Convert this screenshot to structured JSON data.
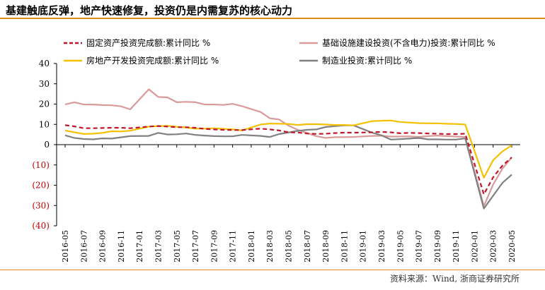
{
  "title": "基建触底反弹，地产快速修复，投资仍是内需复苏的核心动力",
  "source": "资料来源：Wind, 浙商证券研究所",
  "colors": {
    "fixed": "#c0152a",
    "infra": "#d99a9a",
    "realestate": "#f5c000",
    "manufacturing": "#808080",
    "negative_tick": "#c00000",
    "rule": "#e08a1e"
  },
  "chart_data": {
    "type": "line",
    "ylim": [
      -40,
      40
    ],
    "yticks": [
      40,
      30,
      20,
      10,
      0,
      -10,
      -20,
      -30,
      -40
    ],
    "ytick_labels": [
      "40",
      "30",
      "20",
      "10",
      "0",
      "(10)",
      "(20)",
      "(30)",
      "(40)"
    ],
    "xtick_labels": [
      "2016-05",
      "2016-07",
      "2016-09",
      "2016-11",
      "2017-01",
      "2017-03",
      "2017-05",
      "2017-07",
      "2017-09",
      "2017-11",
      "2018-01",
      "2018-03",
      "2018-05",
      "2018-07",
      "2018-09",
      "2018-11",
      "2019-01",
      "2019-03",
      "2019-05",
      "2019-07",
      "2019-09",
      "2019-11",
      "2020-01",
      "2020-03",
      "2020-05"
    ],
    "x": [
      "2016-05",
      "2016-06",
      "2016-07",
      "2016-08",
      "2016-09",
      "2016-10",
      "2016-11",
      "2016-12",
      "2017-02",
      "2017-03",
      "2017-04",
      "2017-05",
      "2017-06",
      "2017-07",
      "2017-08",
      "2017-09",
      "2017-10",
      "2017-11",
      "2017-12",
      "2018-02",
      "2018-03",
      "2018-04",
      "2018-05",
      "2018-06",
      "2018-07",
      "2018-08",
      "2018-09",
      "2018-10",
      "2018-11",
      "2018-12",
      "2019-02",
      "2019-03",
      "2019-04",
      "2019-05",
      "2019-06",
      "2019-07",
      "2019-08",
      "2019-09",
      "2019-10",
      "2019-11",
      "2019-12",
      "2020-02",
      "2020-03",
      "2020-04",
      "2020-05"
    ],
    "series": [
      {
        "key": "fixed",
        "name": "固定资产投资完成额:累计同比 %",
        "values": [
          9.6,
          9.0,
          8.1,
          8.1,
          8.2,
          8.3,
          8.3,
          8.1,
          8.9,
          9.2,
          8.9,
          8.6,
          8.6,
          8.3,
          7.8,
          7.5,
          7.3,
          7.2,
          7.2,
          7.9,
          7.5,
          7.0,
          6.1,
          6.0,
          5.5,
          5.3,
          5.4,
          5.7,
          5.9,
          5.9,
          6.1,
          6.3,
          6.1,
          5.6,
          5.8,
          5.7,
          5.5,
          5.4,
          5.2,
          5.2,
          5.4,
          -24.5,
          -16.1,
          -10.3,
          -6.3
        ]
      },
      {
        "key": "infra",
        "name": "基础设施建设投资(不含电力)投资:累计同比 %",
        "values": [
          19.8,
          20.9,
          19.8,
          19.8,
          19.5,
          19.4,
          18.9,
          17.4,
          27.3,
          23.5,
          23.3,
          20.9,
          21.1,
          20.9,
          19.8,
          19.8,
          19.6,
          20.1,
          19.0,
          16.1,
          13.0,
          12.4,
          9.4,
          7.3,
          5.7,
          4.2,
          3.3,
          3.7,
          3.7,
          3.8,
          4.3,
          4.4,
          4.0,
          4.0,
          4.1,
          3.8,
          4.2,
          4.5,
          4.2,
          4.0,
          3.8,
          -30.3,
          -19.7,
          -11.8,
          -6.3
        ]
      },
      {
        "key": "realestate",
        "name": "房地产开发投资完成额:累计同比 %",
        "values": [
          7.0,
          6.1,
          5.3,
          5.4,
          5.8,
          6.6,
          6.5,
          6.9,
          8.9,
          9.1,
          9.3,
          8.8,
          8.5,
          7.9,
          7.9,
          8.1,
          7.8,
          7.5,
          7.0,
          9.9,
          10.4,
          10.3,
          10.2,
          9.7,
          10.1,
          10.1,
          9.9,
          9.7,
          9.7,
          9.5,
          11.6,
          11.8,
          11.9,
          11.2,
          10.9,
          10.6,
          10.5,
          10.5,
          10.3,
          10.2,
          9.9,
          -16.3,
          -7.7,
          -3.3,
          -0.3
        ]
      },
      {
        "key": "manufacturing",
        "name": "制造业投资:累计同比 %",
        "values": [
          4.6,
          3.3,
          2.8,
          2.6,
          3.1,
          3.0,
          3.6,
          4.2,
          4.3,
          5.8,
          5.0,
          5.1,
          5.5,
          4.8,
          4.5,
          4.2,
          4.1,
          4.1,
          4.8,
          4.3,
          3.8,
          5.2,
          6.0,
          6.8,
          7.3,
          7.5,
          8.7,
          9.1,
          9.5,
          9.5,
          5.9,
          4.6,
          2.5,
          2.7,
          3.0,
          3.3,
          2.6,
          2.6,
          2.5,
          2.5,
          3.1,
          -31.5,
          -25.2,
          -18.8,
          -14.8
        ]
      }
    ]
  }
}
